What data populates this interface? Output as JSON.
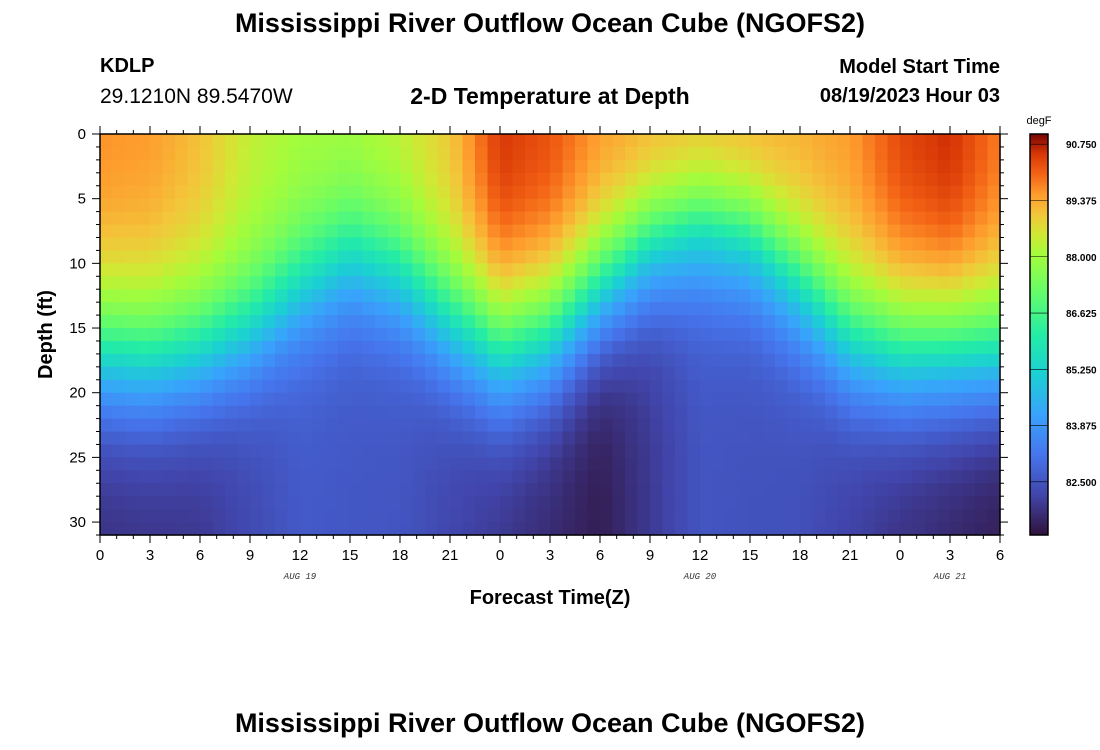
{
  "header": {
    "title": "Mississippi River Outflow Ocean Cube (NGOFS2)",
    "station_code": "KDLP",
    "station_coords": "29.1210N  89.5470W",
    "subtitle": "2-D Temperature at Depth",
    "model_start_label": "Model Start Time",
    "model_start_value": "08/19/2023 Hour 03"
  },
  "footer": {
    "title": "Mississippi River Outflow Ocean Cube (NGOFS2)"
  },
  "chart_data": {
    "type": "heatmap",
    "xlabel": "Forecast Time(Z)",
    "ylabel": "Depth (ft)",
    "x_range_hours": [
      0,
      54
    ],
    "y_range_ft": [
      0,
      31
    ],
    "y_inverted": true,
    "x_tick_labels": [
      "0",
      "3",
      "6",
      "9",
      "12",
      "15",
      "18",
      "21",
      "0",
      "3",
      "6",
      "9",
      "12",
      "15",
      "18",
      "21",
      "0",
      "3",
      "6"
    ],
    "x_tick_hours": [
      0,
      3,
      6,
      9,
      12,
      15,
      18,
      21,
      24,
      27,
      30,
      33,
      36,
      39,
      42,
      45,
      48,
      51,
      54
    ],
    "y_ticks": [
      0,
      5,
      10,
      15,
      20,
      25,
      30
    ],
    "date_labels": [
      {
        "label": "AUG 19",
        "hour": 12
      },
      {
        "label": "AUG 20",
        "hour": 36
      },
      {
        "label": "AUG 21",
        "hour": 51
      }
    ],
    "colorbar": {
      "unit": "degF",
      "min": 81.2,
      "max": 91.0,
      "tick_values": [
        90.75,
        89.375,
        88.0,
        86.625,
        85.25,
        83.875,
        82.5
      ],
      "tick_labels": [
        "90.750",
        "89.375",
        "88.000",
        "86.625",
        "85.250",
        "83.875",
        "82.500"
      ]
    },
    "thermocline_depth_ft": {
      "hours": [
        0,
        3,
        6,
        9,
        12,
        15,
        18,
        21,
        24,
        27,
        30,
        33,
        36,
        39,
        42,
        45,
        48,
        51,
        54
      ],
      "values": [
        18.5,
        18.8,
        17.8,
        15.5,
        12.0,
        9.8,
        11.5,
        15.5,
        18.8,
        17.5,
        13.5,
        10.0,
        8.5,
        9.5,
        13.0,
        17.2,
        18.8,
        18.8,
        18.5
      ]
    },
    "surface_temperature_degF": {
      "hours": [
        0,
        3,
        6,
        9,
        12,
        15,
        18,
        21,
        24,
        27,
        30,
        33,
        36,
        39,
        42,
        45,
        48,
        51,
        54
      ],
      "values": [
        89.6,
        89.5,
        89.1,
        88.4,
        88.1,
        88.1,
        88.4,
        89.0,
        90.5,
        90.2,
        89.5,
        89.3,
        89.2,
        89.3,
        89.3,
        89.5,
        90.3,
        90.6,
        89.8
      ]
    },
    "bottom_temperature_degF": {
      "hours": [
        0,
        6,
        12,
        18,
        24,
        30,
        36,
        42,
        48,
        54
      ],
      "values": [
        81.8,
        81.9,
        82.6,
        82.5,
        81.9,
        81.4,
        82.5,
        82.4,
        81.8,
        81.4
      ]
    }
  }
}
